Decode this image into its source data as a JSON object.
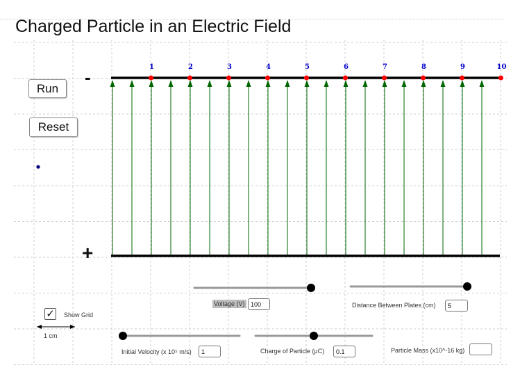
{
  "title": "Charged Particle in an Electric Field",
  "controls": {
    "run_label": "Run",
    "reset_label": "Reset",
    "show_grid_label": "Show Grid",
    "show_grid_checked": true,
    "scale_label": "1 cm"
  },
  "plates": {
    "negative_sign": "-",
    "positive_sign": "+",
    "markers": [
      "1",
      "2",
      "3",
      "4",
      "5",
      "6",
      "7",
      "8",
      "9",
      "10"
    ],
    "plate_color": "#000000",
    "marker_color": "#ff0000",
    "marker_label_color": "#0000cc",
    "field_line_color": "#006600"
  },
  "sliders": {
    "voltage": {
      "label": "Voltage (V)",
      "value": "100",
      "fraction": 1.0
    },
    "distance": {
      "label": "Distance Between Plates (cm)",
      "value": "5",
      "fraction": 1.0
    },
    "velocity": {
      "label": "Initial Velocity (x 10⁵ m/s)",
      "value": "1",
      "fraction": 0.0
    },
    "charge": {
      "label": "Charge of Particle (μC)",
      "value": "0.1",
      "fraction": 0.5
    },
    "mass": {
      "label": "Particle Mass (x10^-16 kg)",
      "value": ""
    }
  },
  "particle": {
    "color": "#00007f"
  }
}
